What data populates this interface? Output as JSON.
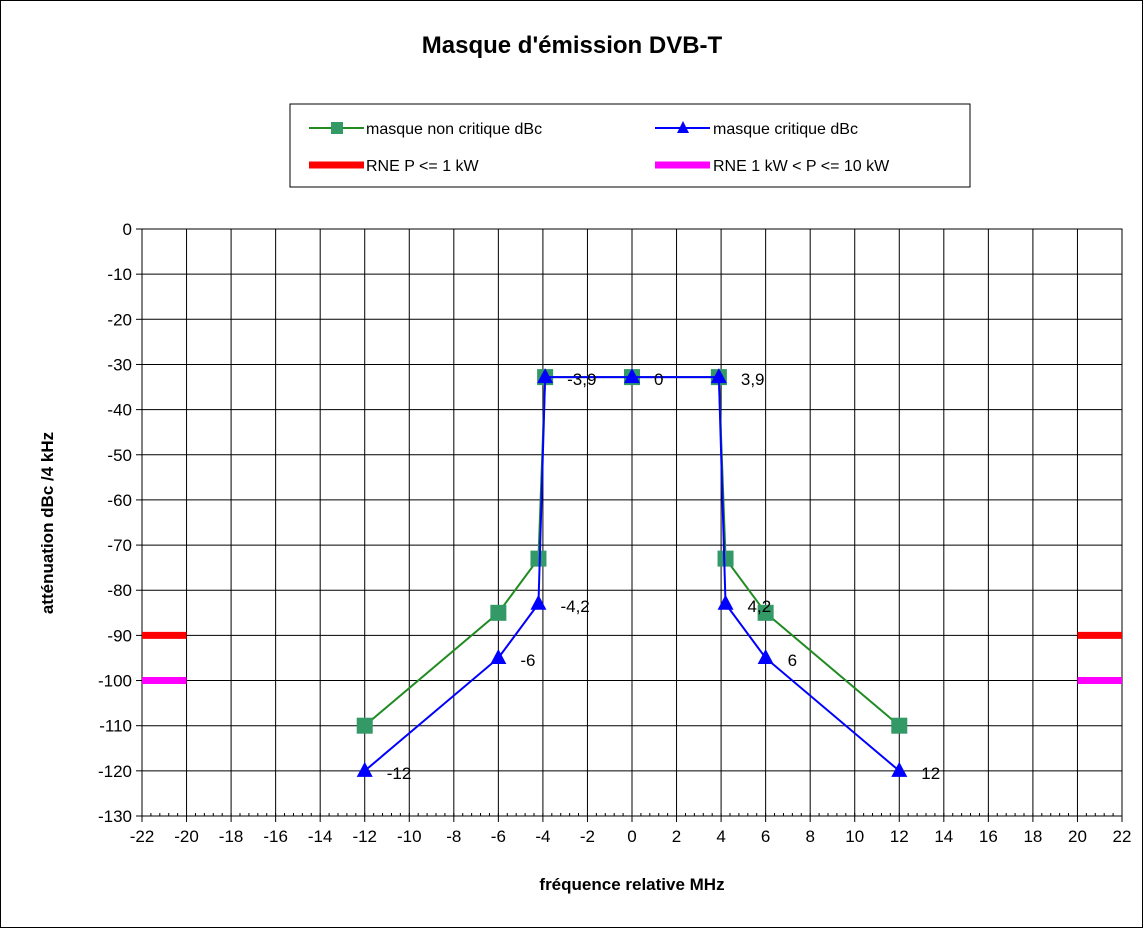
{
  "chart_data": {
    "type": "line",
    "title": "Masque d'émission DVB-T",
    "xlabel": "fréquence relative MHz",
    "ylabel": "atténuation dBc /4 kHz",
    "xlim": [
      -22,
      22
    ],
    "ylim": [
      -130,
      0
    ],
    "x_ticks": [
      "-22",
      "-20",
      "-18",
      "-16",
      "-14",
      "-12",
      "-10",
      "-8",
      "-6",
      "-4",
      "-2",
      "0",
      "2",
      "4",
      "6",
      "8",
      "10",
      "12",
      "14",
      "16",
      "18",
      "20",
      "22"
    ],
    "y_ticks": [
      "0",
      "-10",
      "-20",
      "-30",
      "-40",
      "-50",
      "-60",
      "-70",
      "-80",
      "-90",
      "-100",
      "-110",
      "-120",
      "-130"
    ],
    "grid": true,
    "legend_position": "top",
    "series": [
      {
        "name": "masque non critique dBc",
        "color": "#228b22",
        "marker": "square",
        "marker_color": "#339966",
        "x": [
          -12,
          -6,
          -4.2,
          -3.9,
          0,
          3.9,
          4.2,
          6,
          12
        ],
        "y": [
          -110,
          -85,
          -73,
          -32.8,
          -32.8,
          -32.8,
          -73,
          -85,
          -110
        ]
      },
      {
        "name": "masque critique dBc",
        "color": "#0000ff",
        "marker": "triangle",
        "marker_color": "#0000ff",
        "x": [
          -12,
          -6,
          -4.2,
          -3.9,
          0,
          3.9,
          4.2,
          6,
          12
        ],
        "y": [
          -120,
          -95,
          -83,
          -32.8,
          -32.8,
          -32.8,
          -83,
          -95,
          -120
        ]
      },
      {
        "name": "RNE P <= 1 kW",
        "color": "#ff0000",
        "style": "thick-segments",
        "segments": [
          {
            "x": [
              -22,
              -20
            ],
            "y": [
              -90,
              -90
            ]
          },
          {
            "x": [
              20,
              22
            ],
            "y": [
              -90,
              -90
            ]
          }
        ]
      },
      {
        "name": "RNE 1 kW < P <= 10 kW",
        "color": "#ff00ff",
        "style": "thick-segments",
        "segments": [
          {
            "x": [
              -22,
              -20
            ],
            "y": [
              -100,
              -100
            ]
          },
          {
            "x": [
              20,
              22
            ],
            "y": [
              -100,
              -100
            ]
          }
        ]
      }
    ],
    "annotations": [
      {
        "text": "-3,9",
        "x": -3.9,
        "y": -32.8
      },
      {
        "text": "0",
        "x": 0,
        "y": -32.8
      },
      {
        "text": "3,9",
        "x": 3.9,
        "y": -32.8
      },
      {
        "text": "-4,2",
        "x": -4.2,
        "y": -83
      },
      {
        "text": "4,2",
        "x": 4.2,
        "y": -83
      },
      {
        "text": "-6",
        "x": -6,
        "y": -95
      },
      {
        "text": "6",
        "x": 6,
        "y": -95
      },
      {
        "text": "-12",
        "x": -12,
        "y": -120
      },
      {
        "text": "12",
        "x": 12,
        "y": -120
      }
    ]
  }
}
